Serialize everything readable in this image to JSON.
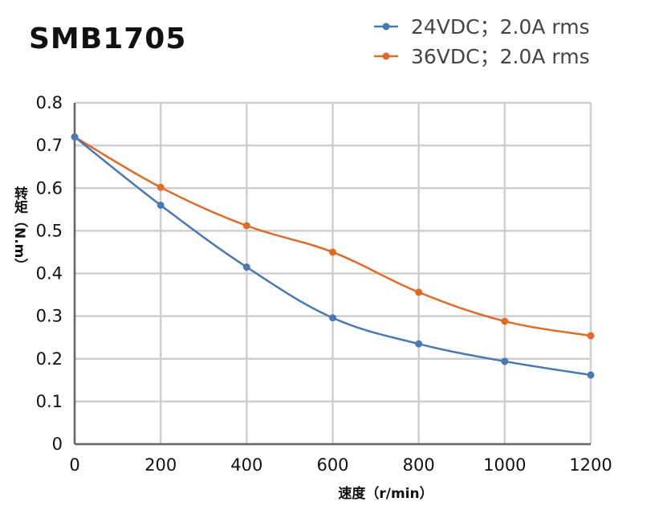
{
  "chart_data": {
    "type": "line",
    "title": "SMB1705",
    "xlabel": "速度（r/min）",
    "ylabel": "转矩（N.m）",
    "x": [
      0,
      200,
      400,
      600,
      800,
      1000,
      1200
    ],
    "xlim": [
      0,
      1200
    ],
    "ylim": [
      0,
      0.8
    ],
    "xticks": [
      "0",
      "200",
      "400",
      "600",
      "800",
      "1000",
      "1200"
    ],
    "yticks": [
      "0",
      "0.1",
      "0.2",
      "0.3",
      "0.4",
      "0.5",
      "0.6",
      "0.7",
      "0.8"
    ],
    "grid": true,
    "legend_position": "top-right",
    "series": [
      {
        "name": "24VDC；2.0A rms",
        "color": "#4a78b5",
        "values": [
          0.72,
          0.56,
          0.415,
          0.296,
          0.235,
          0.194,
          0.162
        ]
      },
      {
        "name": "36VDC；2.0A rms",
        "color": "#e06a26",
        "values": [
          0.72,
          0.602,
          0.512,
          0.45,
          0.356,
          0.288,
          0.254
        ]
      }
    ]
  }
}
